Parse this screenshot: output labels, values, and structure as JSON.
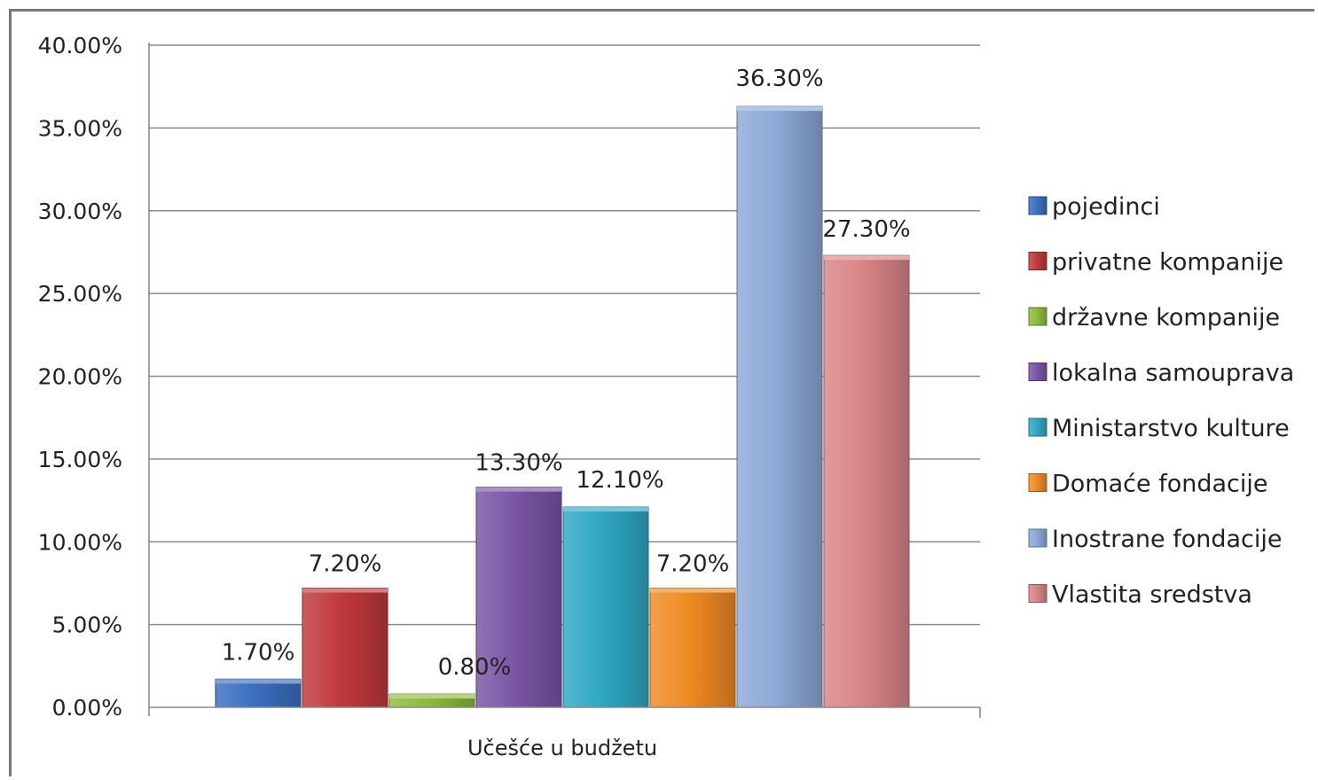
{
  "chart_data": {
    "type": "bar",
    "categories": [
      "Učešće u budžetu"
    ],
    "series": [
      {
        "name": "pojedinci",
        "values": [
          1.7
        ],
        "label": "1.70%",
        "color": "#3A6FC0"
      },
      {
        "name": "privatne kompanije",
        "values": [
          7.2
        ],
        "label": "7.20%",
        "color": "#C0393B"
      },
      {
        "name": "državne kompanije",
        "values": [
          0.8
        ],
        "label": "0.80%",
        "color": "#8DBB3C"
      },
      {
        "name": "lokalna samouprava",
        "values": [
          13.3
        ],
        "label": "13.30%",
        "color": "#7A55A5"
      },
      {
        "name": "Ministarstvo kulture",
        "values": [
          12.1
        ],
        "label": "12.10%",
        "color": "#2FA8C4"
      },
      {
        "name": "Domaće fondacije",
        "values": [
          7.2
        ],
        "label": "7.20%",
        "color": "#F08A23"
      },
      {
        "name": "Inostrane fondacije",
        "values": [
          36.3
        ],
        "label": "36.30%",
        "color": "#8CA9D8"
      },
      {
        "name": "Vlastita sredstva",
        "values": [
          27.3
        ],
        "label": "27.30%",
        "color": "#D98586"
      }
    ],
    "ylim": [
      0,
      40
    ],
    "yticks": [
      "0.00%",
      "5.00%",
      "10.00%",
      "15.00%",
      "20.00%",
      "25.00%",
      "30.00%",
      "35.00%",
      "40.00%"
    ],
    "grid": true,
    "legend": "right",
    "xlabel": "",
    "ylabel": "",
    "title": ""
  }
}
